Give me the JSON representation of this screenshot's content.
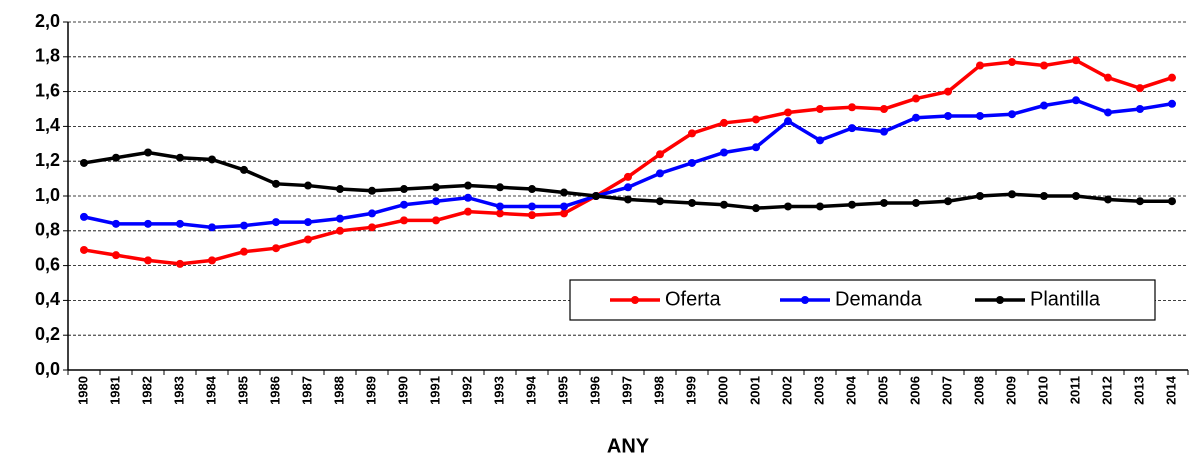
{
  "chart_data": {
    "type": "line",
    "xlabel": "ANY",
    "categories": [
      "1980",
      "1981",
      "1982",
      "1983",
      "1984",
      "1985",
      "1986",
      "1987",
      "1988",
      "1989",
      "1990",
      "1991",
      "1992",
      "1993",
      "1994",
      "1995",
      "1996",
      "1997",
      "1998",
      "1999",
      "2000",
      "2001",
      "2002",
      "2003",
      "2004",
      "2005",
      "2006",
      "2007",
      "2008",
      "2009",
      "2010",
      "2011",
      "2012",
      "2013",
      "2014"
    ],
    "series": [
      {
        "name": "Oferta",
        "color": "#ff0000",
        "values": [
          0.69,
          0.66,
          0.63,
          0.61,
          0.63,
          0.68,
          0.7,
          0.75,
          0.8,
          0.82,
          0.86,
          0.86,
          0.91,
          0.9,
          0.89,
          0.9,
          1.0,
          1.11,
          1.24,
          1.36,
          1.42,
          1.44,
          1.48,
          1.5,
          1.51,
          1.5,
          1.56,
          1.6,
          1.75,
          1.77,
          1.75,
          1.78,
          1.68,
          1.62,
          1.68
        ]
      },
      {
        "name": "Demanda",
        "color": "#0000ff",
        "values": [
          0.88,
          0.84,
          0.84,
          0.84,
          0.82,
          0.83,
          0.85,
          0.85,
          0.87,
          0.9,
          0.95,
          0.97,
          0.99,
          0.94,
          0.94,
          0.94,
          1.0,
          1.05,
          1.13,
          1.19,
          1.25,
          1.28,
          1.43,
          1.32,
          1.39,
          1.37,
          1.45,
          1.46,
          1.46,
          1.47,
          1.52,
          1.55,
          1.48,
          1.5,
          1.53
        ]
      },
      {
        "name": "Plantilla",
        "color": "#000000",
        "values": [
          1.19,
          1.22,
          1.25,
          1.22,
          1.21,
          1.15,
          1.07,
          1.06,
          1.04,
          1.03,
          1.04,
          1.05,
          1.06,
          1.05,
          1.04,
          1.02,
          1.0,
          0.98,
          0.97,
          0.96,
          0.95,
          0.93,
          0.94,
          0.94,
          0.95,
          0.96,
          0.96,
          0.97,
          1.0,
          1.01,
          1.0,
          1.0,
          0.98,
          0.97,
          0.97
        ]
      }
    ],
    "ylim": [
      0,
      2
    ],
    "yticks": [
      {
        "value": 0,
        "label": "0,0"
      },
      {
        "value": 0.2,
        "label": "0,2"
      },
      {
        "value": 0.4,
        "label": "0,4"
      },
      {
        "value": 0.6,
        "label": "0,6"
      },
      {
        "value": 0.8,
        "label": "0,8"
      },
      {
        "value": 1,
        "label": "1,0"
      },
      {
        "value": 1.2,
        "label": "1,2"
      },
      {
        "value": 1.4,
        "label": "1,4"
      },
      {
        "value": 1.6,
        "label": "1,6"
      },
      {
        "value": 1.8,
        "label": "1,8"
      },
      {
        "value": 2,
        "label": "2,0"
      }
    ],
    "grid": true,
    "legend": "lower right"
  }
}
